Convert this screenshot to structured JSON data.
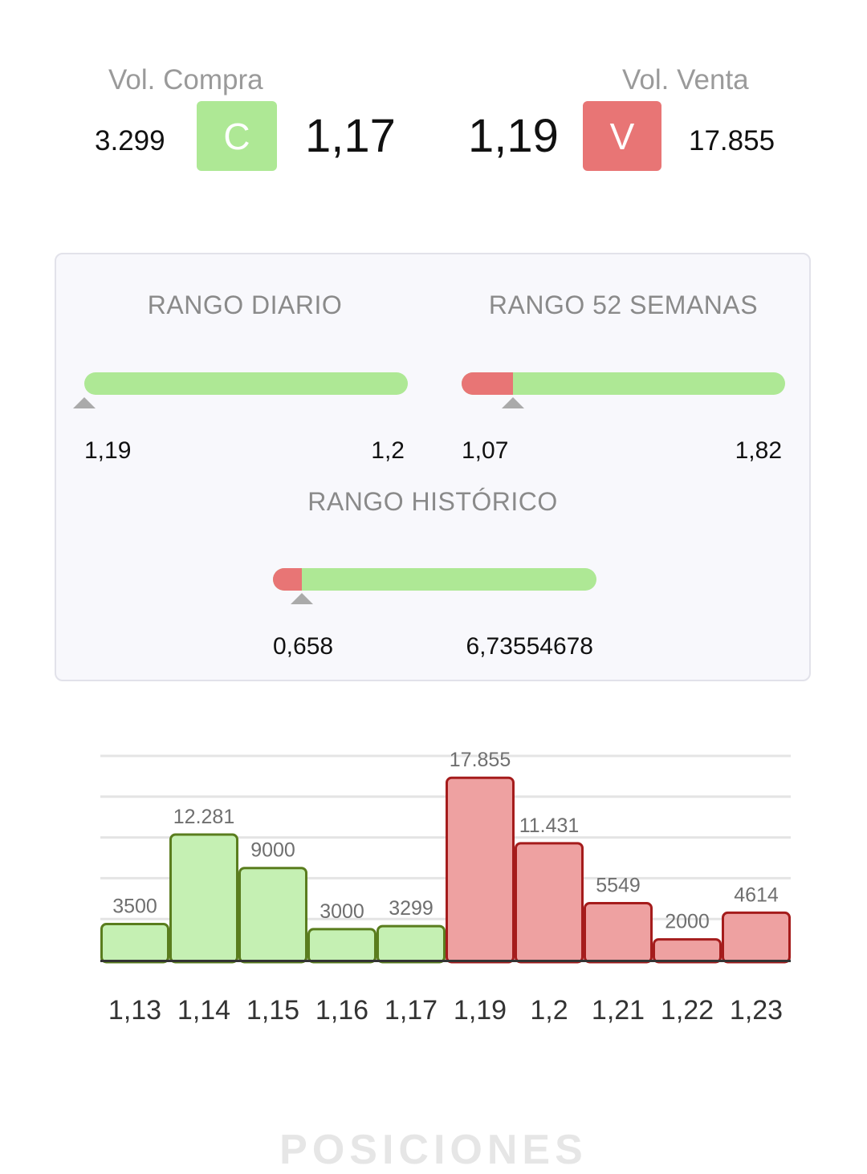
{
  "quote": {
    "buy": {
      "caption": "Vol. Compra",
      "volume": "3.299",
      "button_label": "C",
      "price": "1,17"
    },
    "sell": {
      "caption": "Vol. Venta",
      "volume": "17.855",
      "button_label": "V",
      "price": "1,19"
    }
  },
  "colors": {
    "buy": "#aee895",
    "sell": "#e87575",
    "marker": "#aaaaaa"
  },
  "ranges": {
    "daily": {
      "title": "RANGO DIARIO",
      "min": "1,19",
      "max": "1,2",
      "red_fraction": 0,
      "marker_fraction": 0
    },
    "weeks52": {
      "title": "RANGO 52 SEMANAS",
      "min": "1,07",
      "max": "1,82",
      "red_fraction": 0.16,
      "marker_fraction": 0.16
    },
    "historic": {
      "title": "RANGO HISTÓRICO",
      "min": "0,658",
      "max": "6,73554678",
      "red_fraction": 0.09,
      "marker_fraction": 0.09
    }
  },
  "chart_data": {
    "type": "bar",
    "categories": [
      "1,13",
      "1,14",
      "1,15",
      "1,16",
      "1,17",
      "1,19",
      "1,2",
      "1,21",
      "1,22",
      "1,23"
    ],
    "values": [
      3500,
      12281,
      9000,
      3000,
      3299,
      17855,
      11431,
      5549,
      2000,
      4614
    ],
    "value_labels": [
      "3500",
      "12.281",
      "9000",
      "3000",
      "3299",
      "17.855",
      "11.431",
      "5549",
      "2000",
      "4614"
    ],
    "sides": [
      "buy",
      "buy",
      "buy",
      "buy",
      "buy",
      "sell",
      "sell",
      "sell",
      "sell",
      "sell"
    ],
    "ylim": [
      0,
      20000
    ],
    "grid": true
  },
  "footer": {
    "label": "POSICIONES"
  }
}
